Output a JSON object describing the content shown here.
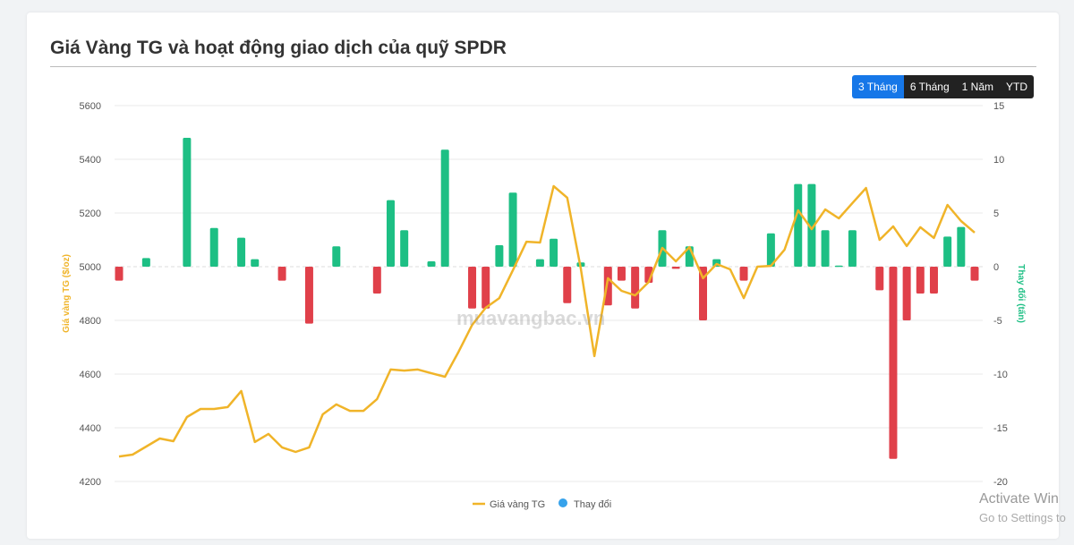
{
  "title": "Giá Vàng TG và hoạt động giao dịch của quỹ SPDR",
  "range_buttons": [
    {
      "label": "3 Tháng",
      "active": true
    },
    {
      "label": "6 Tháng",
      "active": false
    },
    {
      "label": "1 Năm",
      "active": false
    },
    {
      "label": "YTD",
      "active": false
    }
  ],
  "watermark": "muavangbac.vn",
  "os_overlay": {
    "line1": "Activate Win",
    "line2": "Go to Settings to"
  },
  "colors": {
    "line": "#f0b429",
    "positive": "#1dbf84",
    "negative": "#e0404a",
    "legend_dot": "#36a2eb"
  },
  "chart_data": {
    "type": "bar+line",
    "ylabel_left": "Giá vàng TG ($/oz)",
    "ylabel_right": "Thay đổi (tấn)",
    "ylim_left": [
      4200,
      5600
    ],
    "ylim_right": [
      -20,
      15
    ],
    "yticks_left": [
      "5600",
      "5400",
      "5200",
      "5000",
      "4800",
      "4600",
      "4400",
      "4200"
    ],
    "yticks_right": [
      "15",
      "10",
      "5",
      "0",
      "-5",
      "-10",
      "-15",
      "-20"
    ],
    "grid": true,
    "legend_position": "bottom",
    "series": [
      {
        "name": "Giá vàng TG",
        "type": "line",
        "axis": "left",
        "values": [
          4293,
          4300,
          4330,
          4360,
          4350,
          4440,
          4470,
          4470,
          4477,
          4537,
          4347,
          4377,
          4327,
          4310,
          4327,
          4450,
          4487,
          4463,
          4463,
          4507,
          4617,
          4613,
          4617,
          4603,
          4590,
          4683,
          4783,
          4847,
          4883,
          4987,
          5093,
          5090,
          5300,
          5257,
          4993,
          4667,
          4957,
          4910,
          4893,
          4943,
          5070,
          5020,
          5073,
          4957,
          5010,
          4990,
          4883,
          5000,
          5003,
          5063,
          5210,
          5140,
          5213,
          5180,
          5237,
          5293,
          5100,
          5150,
          5077,
          5147,
          5107,
          5230,
          5170,
          5127
        ]
      },
      {
        "name": "Thay đổi",
        "type": "bar",
        "axis": "right",
        "values": [
          -1.3,
          0,
          0.8,
          0,
          0,
          12,
          0,
          3.6,
          0,
          2.7,
          0.7,
          0,
          -1.3,
          0,
          -5.3,
          0,
          1.9,
          0,
          0,
          -2.5,
          6.2,
          3.4,
          0,
          0.5,
          10.9,
          0,
          -3.9,
          -3.9,
          2,
          6.9,
          0,
          0.7,
          2.6,
          -3.4,
          0.4,
          0,
          -3.6,
          -1.3,
          -3.9,
          -1.5,
          3.4,
          -0.2,
          1.9,
          -5,
          0.7,
          0,
          -1.3,
          0,
          3.1,
          0,
          7.7,
          7.7,
          3.4,
          0.1,
          3.4,
          0,
          -2.2,
          -17.9,
          -5,
          -2.5,
          -2.5,
          2.8,
          3.7,
          -1.3
        ]
      }
    ]
  }
}
